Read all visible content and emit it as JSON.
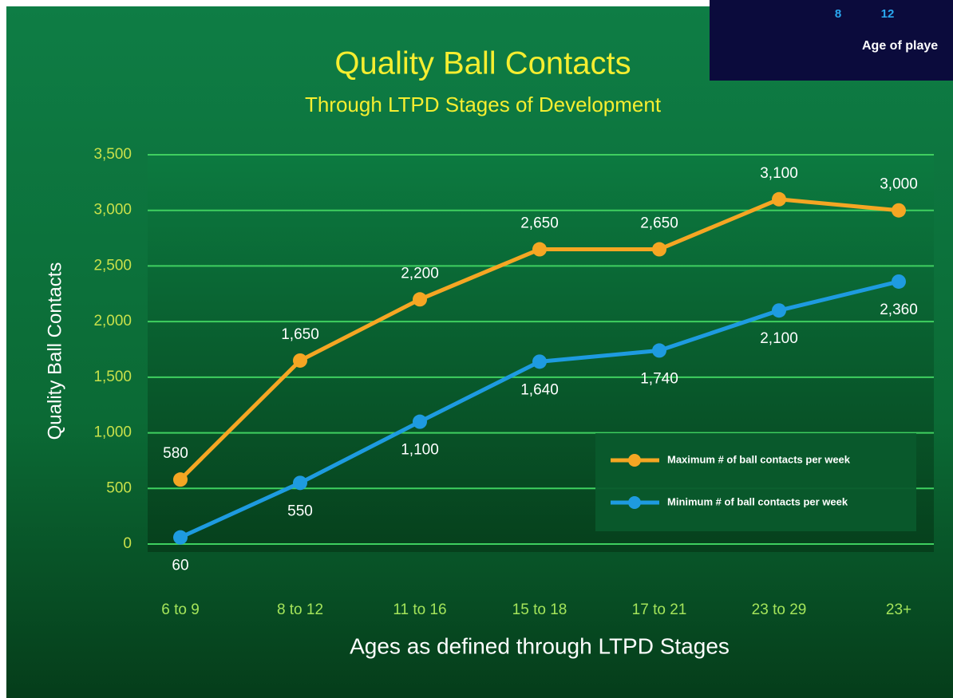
{
  "chart_data": {
    "type": "line",
    "title": "Quality Ball Contacts",
    "subtitle": "Through LTPD Stages of Development",
    "x_label": "Ages as defined through LTPD Stages",
    "y_label": "Quality Ball Contacts",
    "categories": [
      "6 to 9",
      "8 to 12",
      "11 to 16",
      "15 to 18",
      "17 to 21",
      "23 to 29",
      "23+"
    ],
    "series": [
      {
        "name": "Maximum # of ball contacts per week",
        "color": "#f5a623",
        "values": [
          580,
          1650,
          2200,
          2650,
          2650,
          3100,
          3000
        ],
        "value_labels": [
          "580",
          "1,650",
          "2,200",
          "2,650",
          "2,650",
          "3,100",
          "3,000"
        ]
      },
      {
        "name": "Minimum # of ball contacts per week",
        "color": "#1e9be0",
        "values": [
          60,
          550,
          1100,
          1640,
          1740,
          2100,
          2360
        ],
        "value_labels": [
          "60",
          "550",
          "1,100",
          "1,640",
          "1,740",
          "2,100",
          "2,360"
        ]
      }
    ],
    "ylim": [
      0,
      3500
    ],
    "yticks": [
      0,
      500,
      {
        "value": 1000,
        "label": "1,000"
      },
      {
        "value": 1500,
        "label": "1,500"
      },
      {
        "value": 2000,
        "label": "2,000"
      },
      {
        "value": 2500,
        "label": "2,500"
      },
      {
        "value": 3000,
        "label": "3,000"
      },
      {
        "value": 3500,
        "label": "3,500"
      }
    ],
    "grid": true,
    "legend": "lower right"
  },
  "inset": {
    "ticks": [
      "8",
      "12"
    ],
    "axis_label": "Age of playe"
  }
}
